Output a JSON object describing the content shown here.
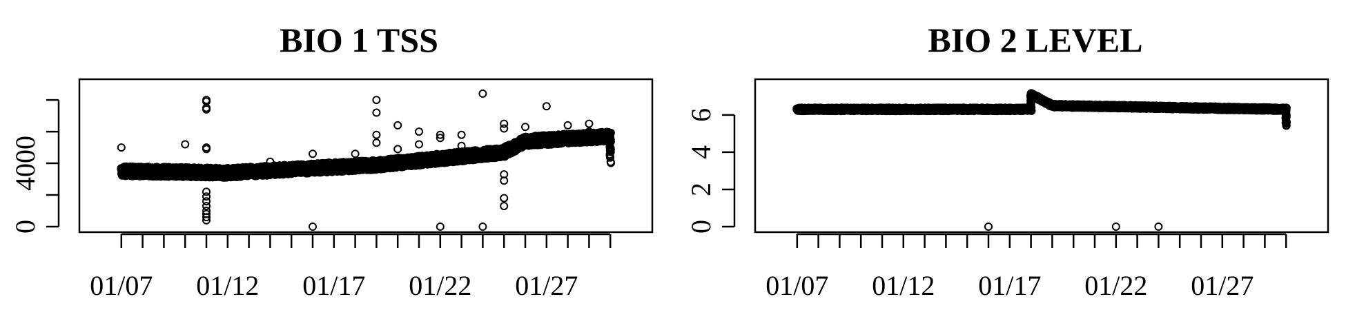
{
  "chart_data": [
    {
      "type": "scatter",
      "title": "BIO 1 TSS",
      "xlabel": "",
      "ylabel": "",
      "x_type": "date",
      "xlim": [
        "01/06",
        "01/31"
      ],
      "ylim": [
        0,
        8700
      ],
      "y_ticks": [
        0,
        2000,
        4000,
        6000,
        8000
      ],
      "y_tick_labels": [
        "0",
        "",
        "4000",
        "",
        ""
      ],
      "x_ticks": [
        "01/07",
        "01/08",
        "01/09",
        "01/10",
        "01/11",
        "01/12",
        "01/13",
        "01/14",
        "01/15",
        "01/16",
        "01/17",
        "01/18",
        "01/19",
        "01/20",
        "01/21",
        "01/22",
        "01/23",
        "01/24",
        "01/25",
        "01/26",
        "01/27",
        "01/28",
        "01/29",
        "01/30"
      ],
      "x_tick_labels": [
        "01/07",
        "",
        "",
        "",
        "",
        "01/12",
        "",
        "",
        "",
        "",
        "01/17",
        "",
        "",
        "",
        "",
        "01/22",
        "",
        "",
        "",
        "",
        "01/27",
        "",
        "",
        ""
      ],
      "grid": false,
      "trend": [
        [
          "01/07",
          3500
        ],
        [
          "01/12",
          3400
        ],
        [
          "01/19",
          3900
        ],
        [
          "01/25",
          4700
        ],
        [
          "01/26",
          5400
        ],
        [
          "01/30",
          5700
        ],
        [
          "01/30",
          4300
        ]
      ],
      "outliers": [
        [
          "01/07",
          5000
        ],
        [
          "01/10",
          5200
        ],
        [
          "01/11",
          8000
        ],
        [
          "01/11",
          7900
        ],
        [
          "01/11",
          7500
        ],
        [
          "01/11",
          7400
        ],
        [
          "01/11",
          5000
        ],
        [
          "01/11",
          4900
        ],
        [
          "01/11",
          2200
        ],
        [
          "01/11",
          1900
        ],
        [
          "01/11",
          1600
        ],
        [
          "01/11",
          1300
        ],
        [
          "01/11",
          1000
        ],
        [
          "01/11",
          800
        ],
        [
          "01/11",
          600
        ],
        [
          "01/11",
          400
        ],
        [
          "01/16",
          0
        ],
        [
          "01/16",
          4600
        ],
        [
          "01/19",
          8000
        ],
        [
          "01/19",
          7200
        ],
        [
          "01/19",
          5800
        ],
        [
          "01/19",
          5300
        ],
        [
          "01/20",
          6400
        ],
        [
          "01/21",
          5200
        ],
        [
          "01/21",
          6000
        ],
        [
          "01/22",
          5800
        ],
        [
          "01/22",
          5600
        ],
        [
          "01/22",
          0
        ],
        [
          "01/23",
          5800
        ],
        [
          "01/24",
          0
        ],
        [
          "01/24",
          8400
        ],
        [
          "01/25",
          3300
        ],
        [
          "01/25",
          2900
        ],
        [
          "01/25",
          1800
        ],
        [
          "01/25",
          1300
        ],
        [
          "01/25",
          6500
        ],
        [
          "01/25",
          6200
        ],
        [
          "01/26",
          6300
        ],
        [
          "01/27",
          7600
        ],
        [
          "01/28",
          6400
        ],
        [
          "01/29",
          6500
        ],
        [
          "01/29",
          6000
        ],
        [
          "01/23",
          5100
        ],
        [
          "01/14",
          4100
        ],
        [
          "01/18",
          4600
        ],
        [
          "01/20",
          4900
        ]
      ]
    },
    {
      "type": "scatter",
      "title": "BIO 2 LEVEL",
      "xlabel": "",
      "ylabel": "",
      "x_type": "date",
      "xlim": [
        "01/06",
        "01/31"
      ],
      "ylim": [
        0,
        7.4
      ],
      "y_ticks": [
        0,
        2,
        4,
        6
      ],
      "y_tick_labels": [
        "0",
        "2",
        "4",
        "6"
      ],
      "x_ticks": [
        "01/07",
        "01/08",
        "01/09",
        "01/10",
        "01/11",
        "01/12",
        "01/13",
        "01/14",
        "01/15",
        "01/16",
        "01/17",
        "01/18",
        "01/19",
        "01/20",
        "01/21",
        "01/22",
        "01/23",
        "01/24",
        "01/25",
        "01/26",
        "01/27",
        "01/28",
        "01/29",
        "01/30"
      ],
      "x_tick_labels": [
        "01/07",
        "",
        "",
        "",
        "",
        "01/12",
        "",
        "",
        "",
        "",
        "01/17",
        "",
        "",
        "",
        "",
        "01/22",
        "",
        "",
        "",
        "",
        "01/27",
        "",
        "",
        ""
      ],
      "grid": false,
      "trend": [
        [
          "01/07",
          6.3
        ],
        [
          "01/18",
          6.3
        ],
        [
          "01/18",
          7.1
        ],
        [
          "01/19",
          6.5
        ],
        [
          "01/30",
          6.3
        ],
        [
          "01/30",
          5.5
        ]
      ],
      "outliers": [
        [
          "01/16",
          0
        ],
        [
          "01/22",
          0
        ],
        [
          "01/24",
          0
        ]
      ]
    }
  ]
}
